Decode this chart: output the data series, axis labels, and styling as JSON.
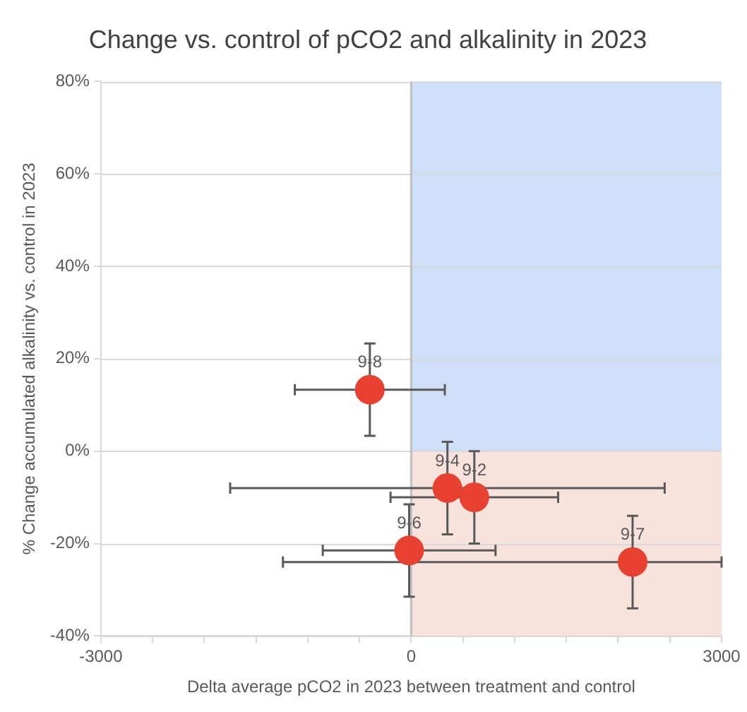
{
  "chart_data": {
    "type": "scatter",
    "title": "Change vs. control of pCO2 and alkalinity in 2023",
    "xlabel": "Delta average pCO2 in 2023 between treatment and control",
    "ylabel": "% Change accumulated alkalinity vs. control in 2023",
    "x": [
      -400,
      350,
      610,
      -20,
      2140
    ],
    "values": [
      13.3,
      -8,
      -10,
      -21.5,
      -24
    ],
    "value_labels": [
      "9-8",
      "9-4",
      "9-2",
      "9-6",
      "9-7"
    ],
    "errors": [
      10,
      10,
      10,
      10,
      10
    ],
    "xerrors": [
      725,
      2100,
      810,
      835,
      [
        -1240,
        3000
      ]
    ],
    "color": "#e84031",
    "marker": "circle",
    "xlim": [
      -3000,
      3000
    ],
    "xticks": [
      -3000,
      {
        "value": -2500,
        "label": null
      },
      {
        "value": -2000,
        "label": null
      },
      {
        "value": -1500,
        "label": null
      },
      {
        "value": -1000,
        "label": null
      },
      {
        "value": -500,
        "label": null
      },
      0,
      {
        "value": 500,
        "label": null
      },
      {
        "value": 1000,
        "label": null
      },
      {
        "value": 1500,
        "label": null
      },
      {
        "value": 2000,
        "label": null
      },
      {
        "value": 2500,
        "label": null
      },
      3000
    ],
    "ylim": [
      -40,
      80
    ],
    "yticks": [
      {
        "value": -40,
        "label": "-40%"
      },
      {
        "value": -20,
        "label": "-20%"
      },
      {
        "value": 0,
        "label": "0%"
      },
      {
        "value": 20,
        "label": "20%"
      },
      {
        "value": 40,
        "label": "40%"
      },
      {
        "value": 60,
        "label": "60%"
      },
      {
        "value": 80,
        "label": "80%"
      }
    ],
    "grid": "y",
    "legend": false,
    "ref_lines": [
      {
        "axis": "x",
        "value": 0,
        "color": "#bfbfbf"
      }
    ],
    "bands": [
      {
        "axis": "y",
        "from": 0,
        "to": 80,
        "color": "#cfdff7"
      },
      {
        "axis": "y",
        "from": -40,
        "to": 0,
        "color": "#f8e2dc"
      }
    ]
  }
}
